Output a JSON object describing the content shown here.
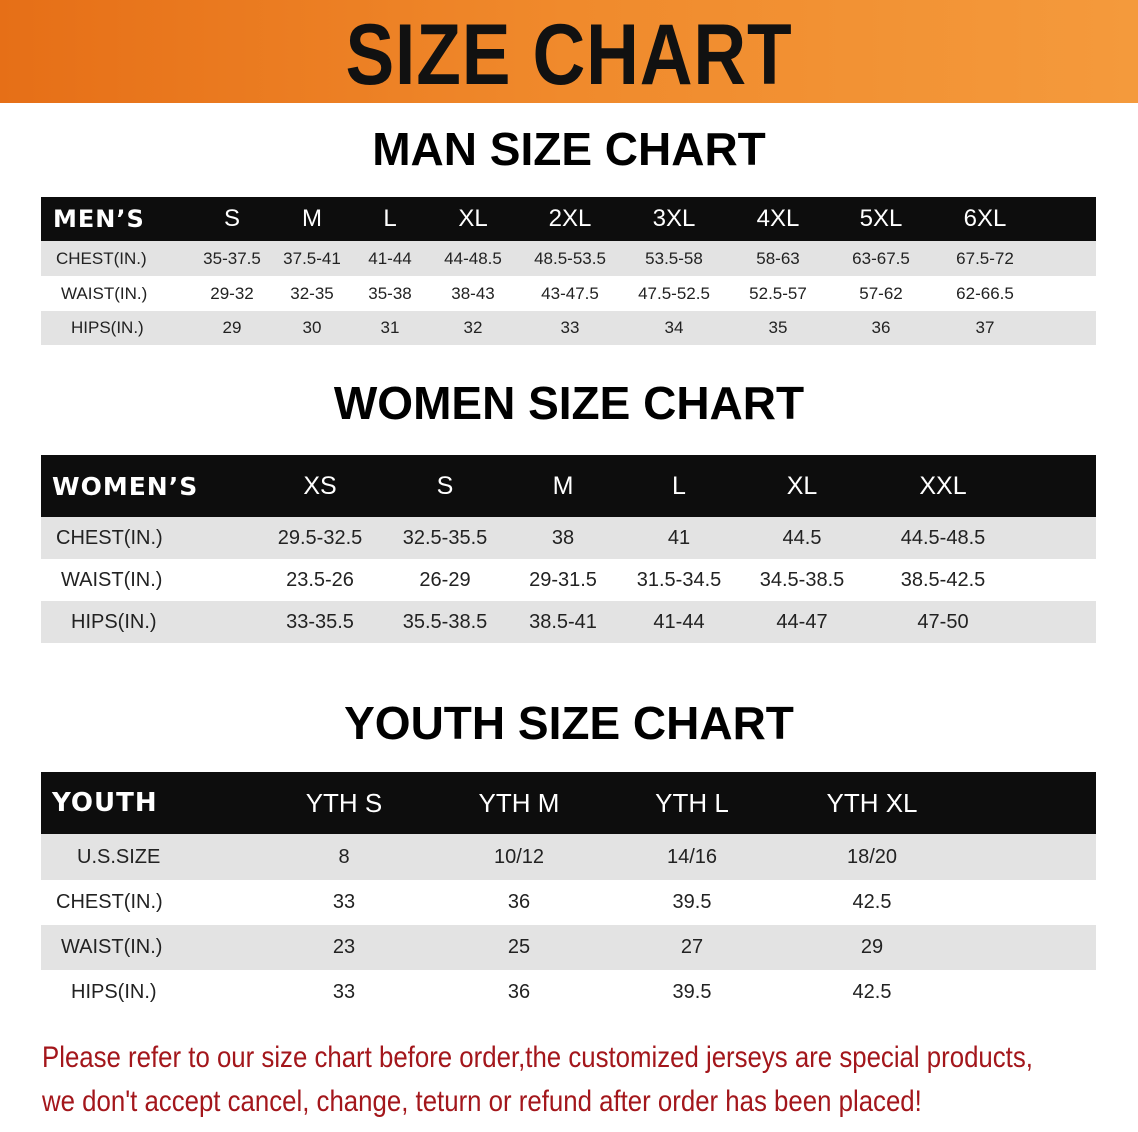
{
  "banner_title": "SIZE CHART",
  "colors": {
    "banner": "#ee8025",
    "header_bg": "#0d0d0d",
    "row_alt": "#e3e3e3",
    "note": "#a3161b"
  },
  "men": {
    "title": "MAN SIZE CHART",
    "header": "MEN’S",
    "sizes": [
      "S",
      "M",
      "L",
      "XL",
      "2XL",
      "3XL",
      "4XL",
      "5XL",
      "6XL"
    ],
    "rows": [
      {
        "label": "CHEST(IN.)",
        "values": [
          "35-37.5",
          "37.5-41",
          "41-44",
          "44-48.5",
          "48.5-53.5",
          "53.5-58",
          "58-63",
          "63-67.5",
          "67.5-72"
        ]
      },
      {
        "label": "WAIST(IN.)",
        "values": [
          "29-32",
          "32-35",
          "35-38",
          "38-43",
          "43-47.5",
          "47.5-52.5",
          "52.5-57",
          "57-62",
          "62-66.5"
        ]
      },
      {
        "label": "HIPS(IN.)",
        "values": [
          "29",
          "30",
          "31",
          "32",
          "33",
          "34",
          "35",
          "36",
          "37"
        ]
      }
    ]
  },
  "women": {
    "title": "WOMEN SIZE CHART",
    "header": "WOMEN’S",
    "sizes": [
      "XS",
      "S",
      "M",
      "L",
      "XL",
      "XXL"
    ],
    "rows": [
      {
        "label": "CHEST(IN.)",
        "values": [
          "29.5-32.5",
          "32.5-35.5",
          "38",
          "41",
          "44.5",
          "44.5-48.5"
        ]
      },
      {
        "label": "WAIST(IN.)",
        "values": [
          "23.5-26",
          "26-29",
          "29-31.5",
          "31.5-34.5",
          "34.5-38.5",
          "38.5-42.5"
        ]
      },
      {
        "label": "HIPS(IN.)",
        "values": [
          "33-35.5",
          "35.5-38.5",
          "38.5-41",
          "41-44",
          "44-47",
          "47-50"
        ]
      }
    ]
  },
  "youth": {
    "title": "YOUTH SIZE CHART",
    "header": "YOUTH",
    "sizes": [
      "YTH S",
      "YTH M",
      "YTH L",
      "YTH XL"
    ],
    "rows": [
      {
        "label": "U.S.SIZE",
        "values": [
          "8",
          "10/12",
          "14/16",
          "18/20"
        ]
      },
      {
        "label": "CHEST(IN.)",
        "values": [
          "33",
          "36",
          "39.5",
          "42.5"
        ]
      },
      {
        "label": "WAIST(IN.)",
        "values": [
          "23",
          "25",
          "27",
          "29"
        ]
      },
      {
        "label": "HIPS(IN.)",
        "values": [
          "33",
          "36",
          "39.5",
          "42.5"
        ]
      }
    ]
  },
  "note": {
    "line1": "Please refer to our size chart before order,the customized jerseys are special products,",
    "line2": "we don't accept cancel, change, teturn or refund after order has been placed!"
  }
}
